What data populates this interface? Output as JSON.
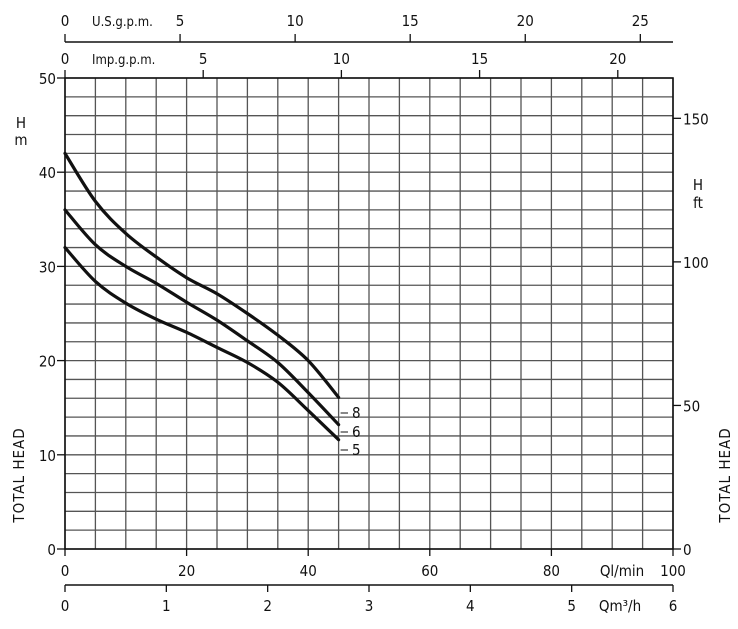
{
  "chart_data": {
    "type": "line",
    "x_axis": {
      "label": "Ql/min",
      "range": [
        0,
        100
      ],
      "ticks": [
        0,
        20,
        40,
        60,
        80,
        100
      ],
      "minor_step": 5
    },
    "x_axis_m3h": {
      "label": "Qm³/h",
      "range": [
        0,
        6
      ],
      "ticks": [
        0,
        1,
        2,
        3,
        4,
        5,
        6
      ]
    },
    "x_axis_usgpm": {
      "label": "U.S.g.p.m.",
      "ticks": [
        0,
        5,
        10,
        15,
        20,
        25
      ]
    },
    "x_axis_impgpm": {
      "label": "Imp.g.p.m.",
      "ticks": [
        0,
        5,
        10,
        15,
        20
      ]
    },
    "y_axis_left": {
      "unit_top": "H",
      "unit_bottom": "m",
      "label": "TOTAL HEAD",
      "range": [
        0,
        50
      ],
      "ticks": [
        0,
        10,
        20,
        30,
        40,
        50
      ],
      "minor_step": 2
    },
    "y_axis_right": {
      "unit_top": "H",
      "unit_bottom": "ft",
      "label": "TOTAL HEAD",
      "ticks": [
        0,
        50,
        100,
        150
      ]
    },
    "grid": true,
    "line_color": "#111111",
    "grid_color": "#555555",
    "series": [
      {
        "name": "8",
        "x": [
          0,
          5,
          10,
          15,
          20,
          25,
          30,
          35,
          40,
          45
        ],
        "y": [
          42,
          36.9,
          33.5,
          31,
          28.8,
          27.1,
          25,
          22.7,
          20,
          16.1
        ]
      },
      {
        "name": "6",
        "x": [
          0,
          5,
          10,
          15,
          20,
          25,
          30,
          35,
          40,
          45
        ],
        "y": [
          36,
          32.3,
          30,
          28.2,
          26.2,
          24.3,
          22.1,
          19.8,
          16.6,
          13.2
        ]
      },
      {
        "name": "5",
        "x": [
          0,
          5,
          10,
          15,
          20,
          25,
          30,
          35,
          40,
          45
        ],
        "y": [
          32,
          28.4,
          26.1,
          24.4,
          23,
          21.4,
          19.8,
          17.7,
          14.7,
          11.6
        ]
      }
    ]
  }
}
